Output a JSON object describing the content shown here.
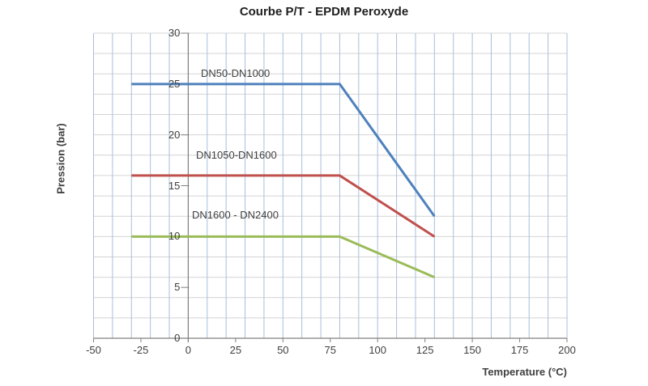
{
  "chart_data": {
    "type": "line",
    "title": "Courbe P/T - EPDM Peroxyde",
    "xlabel": "Temperature (°C)",
    "ylabel": "Pression (bar)",
    "xlim": [
      -50,
      200
    ],
    "ylim": [
      0,
      30
    ],
    "x_grid_step": 10,
    "y_grid_step": 2,
    "x_ticks": [
      "-50",
      "-25",
      "0",
      "25",
      "50",
      "75",
      "100",
      "125",
      "150",
      "175",
      "200"
    ],
    "y_ticks": [
      "0",
      "5",
      "10",
      "15",
      "20",
      "25",
      "30"
    ],
    "grid": true,
    "legend_position": "inline-labels-above-lines",
    "series": [
      {
        "name": "DN50-DN1000",
        "color": "#4F81BD",
        "points": [
          [
            -30,
            25
          ],
          [
            80,
            25
          ],
          [
            130,
            12
          ]
        ]
      },
      {
        "name": "DN1050-DN1600",
        "color": "#C0504D",
        "points": [
          [
            -30,
            16
          ],
          [
            80,
            16
          ],
          [
            130,
            10
          ]
        ]
      },
      {
        "name": "DN1600 - DN2400",
        "color": "#9BBB59",
        "points": [
          [
            -30,
            10
          ],
          [
            80,
            10
          ],
          [
            130,
            6
          ]
        ]
      }
    ],
    "colors": {
      "axis": "#808080",
      "v_grid": "#A7BFDD",
      "h_grid": "#D4D4D4",
      "text": "#3F3F3F",
      "title": "#1F1F1F"
    }
  }
}
